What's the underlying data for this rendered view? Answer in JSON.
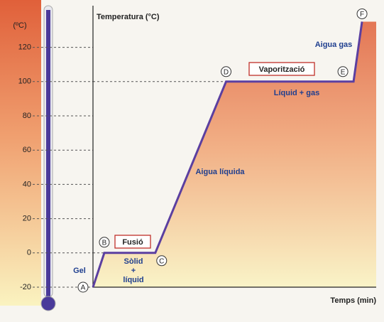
{
  "chart_data": {
    "type": "line",
    "y_axis_label": "Temperatura (°C)",
    "x_axis_label": "Temps (min)",
    "scale_label": "(ºC)",
    "x": [
      0,
      4,
      22,
      47,
      92,
      95
    ],
    "xlim": [
      0,
      100
    ],
    "series": [
      {
        "color": "#5b3fa0",
        "values": [
          -20,
          0,
          0,
          100,
          100,
          135
        ],
        "point_labels": [
          "A",
          "B",
          "C",
          "D",
          "E",
          "F"
        ]
      }
    ],
    "ylim": [
      -20,
      140
    ],
    "yticks": [
      -20,
      0,
      20,
      40,
      60,
      80,
      100,
      120
    ],
    "annotations": [
      "Gel",
      "Fusió",
      "Sòlid",
      "+",
      "líquid",
      "Aigua líquida",
      "Vaporització",
      "Líquid + gas",
      "Aigua gas"
    ]
  }
}
